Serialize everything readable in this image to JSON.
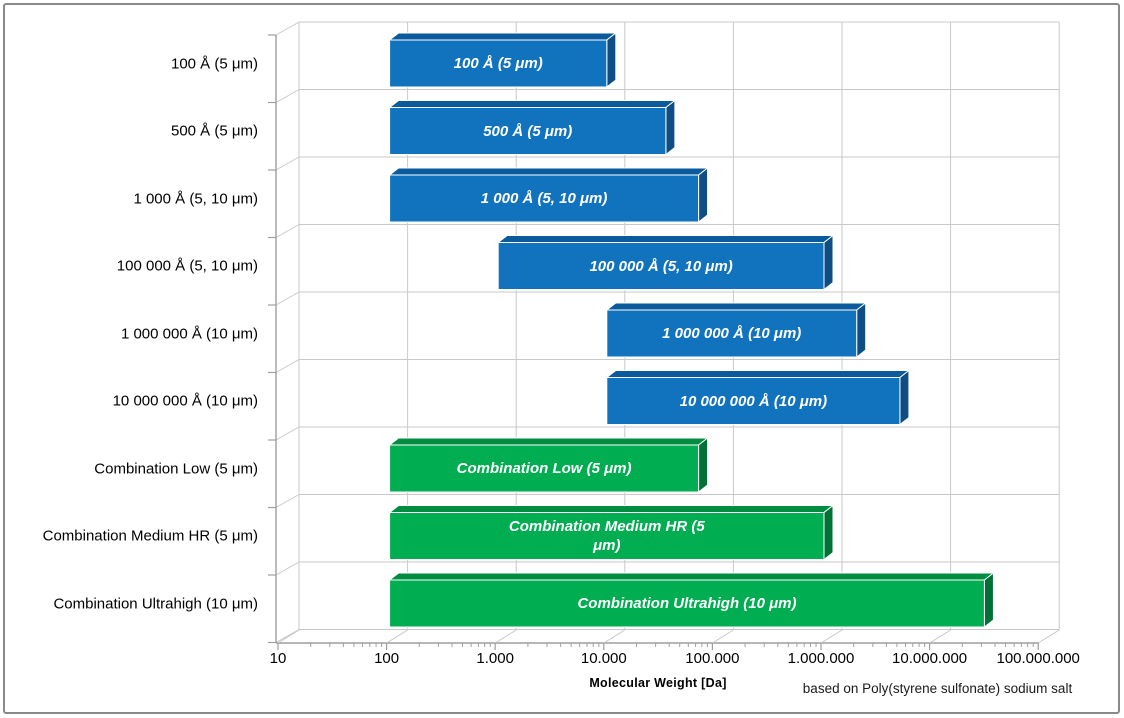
{
  "chart_data": {
    "type": "bar",
    "orientation": "horizontal",
    "x_scale": "log",
    "xlim": [
      10,
      100000000
    ],
    "grid": true,
    "style": "3d-extruded",
    "xlabel": "Molecular  Weight [Da]",
    "footnote": "based on Poly(styrene sulfonate) sodium salt",
    "x_ticks": [
      "10",
      "100",
      "1.000",
      "10.000",
      "100.000",
      "1.000.000",
      "10.000.000",
      "100.000.000"
    ],
    "bars": [
      {
        "category": "100 Å (5 μm)",
        "label_lines": [
          "100 Å (5 μm)"
        ],
        "from": 100,
        "to": 10000,
        "color_key": "blue"
      },
      {
        "category": "500 Å (5 μm)",
        "label_lines": [
          "500 Å (5 μm)"
        ],
        "from": 100,
        "to": 35000,
        "color_key": "blue"
      },
      {
        "category": "1 000 Å (5, 10 μm)",
        "label_lines": [
          "1 000 Å (5, 10 μm)"
        ],
        "from": 100,
        "to": 70000,
        "color_key": "blue"
      },
      {
        "category": "100 000 Å (5, 10 μm)",
        "label_lines": [
          "100 000 Å (5, 10 μm)"
        ],
        "from": 1000,
        "to": 1000000,
        "color_key": "blue"
      },
      {
        "category": "1 000 000 Å (10 μm)",
        "label_lines": [
          "1 000 000 Å (10 μm)"
        ],
        "from": 10000,
        "to": 2000000,
        "color_key": "blue"
      },
      {
        "category": "10 000 000 Å (10 μm)",
        "label_lines": [
          "10 000 000 Å (10 μm)"
        ],
        "from": 10000,
        "to": 5000000,
        "color_key": "blue"
      },
      {
        "category": "Combination Low (5 μm)",
        "label_lines": [
          "Combination Low (5 μm)"
        ],
        "from": 100,
        "to": 70000,
        "color_key": "green"
      },
      {
        "category": "Combination Medium HR (5 μm)",
        "label_lines": [
          "Combination Medium HR (5",
          "μm)"
        ],
        "from": 100,
        "to": 1000000,
        "color_key": "green"
      },
      {
        "category": "Combination Ultrahigh (10 μm)",
        "label_lines": [
          "Combination Ultrahigh (10 μm)"
        ],
        "from": 100,
        "to": 30000000,
        "color_key": "green"
      }
    ],
    "colors": {
      "blue": {
        "front": "#1173BE",
        "top": "#0A5A9C",
        "side": "#0E4E84"
      },
      "green": {
        "front": "#00AD51",
        "top": "#008C41",
        "side": "#007134"
      },
      "grid": "#C8C8C8",
      "frame": "#9E9E9E",
      "bar_edge": "#FFFFFF",
      "axis_text": "#000000"
    }
  }
}
